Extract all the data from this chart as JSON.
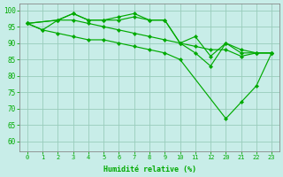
{
  "background_color": "#c8ede8",
  "grid_color": "#99ccbb",
  "line_color": "#00aa00",
  "marker_color": "#00aa00",
  "xlabel": "Humidité relative (%)",
  "xlabel_color": "#00aa00",
  "tick_color": "#00aa00",
  "ylim": [
    57,
    102
  ],
  "yticks": [
    60,
    65,
    70,
    75,
    80,
    85,
    90,
    95,
    100
  ],
  "xtick_labels": [
    "0",
    "1",
    "2",
    "3",
    "4",
    "5",
    "6",
    "7",
    "8",
    "9",
    "10",
    "11",
    "12",
    "20",
    "21",
    "22",
    "23"
  ],
  "series": [
    {
      "xi": [
        0,
        1,
        2,
        3,
        4,
        5,
        6,
        7,
        8,
        9,
        10,
        11,
        12,
        13,
        14,
        15,
        16
      ],
      "y": [
        96,
        94,
        97,
        99,
        97,
        97,
        97,
        98,
        97,
        97,
        90,
        92,
        86,
        90,
        87,
        87,
        87
      ]
    },
    {
      "xi": [
        0,
        2,
        3,
        4,
        5,
        6,
        7,
        8,
        9,
        10,
        11,
        12,
        13,
        14,
        15,
        16
      ],
      "y": [
        96,
        97,
        99,
        97,
        97,
        98,
        99,
        97,
        97,
        90,
        87,
        83,
        90,
        88,
        87,
        87
      ]
    },
    {
      "xi": [
        0,
        2,
        3,
        4,
        5,
        6,
        7,
        8,
        9,
        10,
        11,
        12,
        13,
        14,
        15,
        16
      ],
      "y": [
        96,
        97,
        97,
        96,
        95,
        94,
        93,
        92,
        91,
        90,
        89,
        88,
        88,
        86,
        87,
        87
      ]
    },
    {
      "xi": [
        0,
        1,
        2,
        3,
        4,
        5,
        6,
        7,
        8,
        9,
        10,
        13,
        14,
        15,
        16
      ],
      "y": [
        96,
        94,
        93,
        92,
        91,
        91,
        90,
        89,
        88,
        87,
        85,
        67,
        72,
        77,
        87
      ]
    }
  ],
  "figsize": [
    3.2,
    2.0
  ],
  "dpi": 100
}
